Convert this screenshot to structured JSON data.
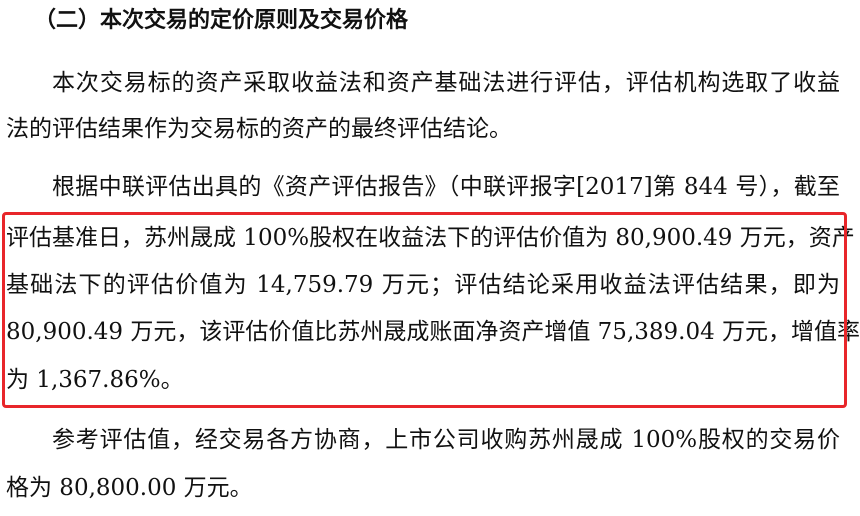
{
  "heading": "（二）本次交易的定价原则及交易价格",
  "paragraphs": [
    {
      "lines": [
        "本次交易标的资产采取收益法和资产基础法进行评估，评估机构选取了收益",
        "法的评估结果作为交易标的资产的最终评估结论。"
      ]
    },
    {
      "lines": [
        "根据中联评估出具的《资产评估报告》（中联评报字[2017]第 844 号），截至",
        "评估基准日，苏州晟成 100%股权在收益法下的评估价值为 80,900.49 万元，资产",
        "基础法下的评估价值为  14,759.79  万元；评估结论采用收益法评估结果，即为",
        "80,900.49 万元，该评估价值比苏州晟成账面净资产增值 75,389.04 万元，增值率",
        "为 1,367.86%。"
      ]
    },
    {
      "lines": [
        "参考评估值，经交易各方协商，上市公司收购苏州晟成 100%股权的交易价",
        "格为 80,800.00 万元。"
      ]
    }
  ],
  "highlight_color": "#e8262a"
}
